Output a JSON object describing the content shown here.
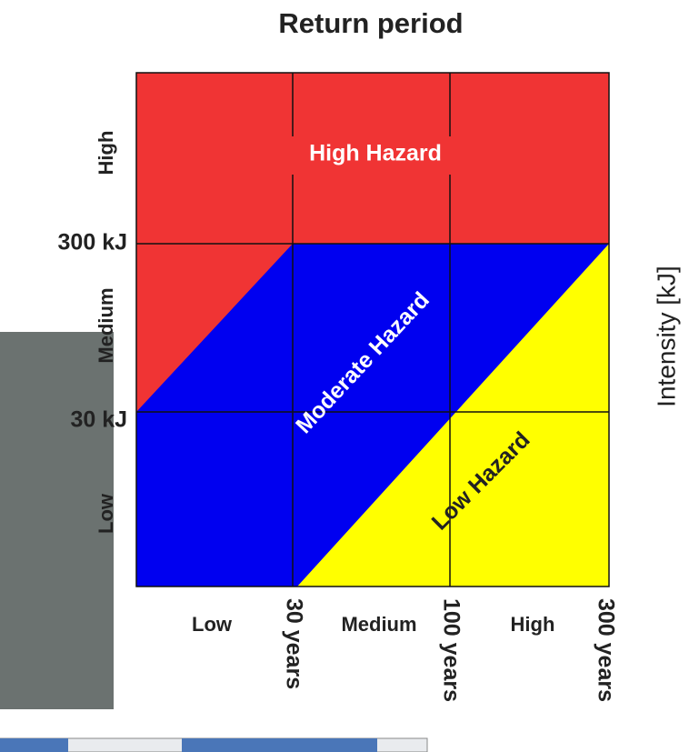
{
  "title": "Return period",
  "zones": {
    "high": "High Hazard",
    "moderate": "Moderate Hazard",
    "low": "Low Hazard"
  },
  "y_axis": {
    "title": "Intensity [kJ]",
    "thresholds": [
      "300 kJ",
      "30 kJ"
    ],
    "classes": [
      "High",
      "Medium",
      "Low"
    ]
  },
  "x_axis": {
    "classes": [
      "Low",
      "Medium",
      "High"
    ],
    "thresholds": [
      "30 years",
      "100 years",
      "300 years"
    ]
  }
}
